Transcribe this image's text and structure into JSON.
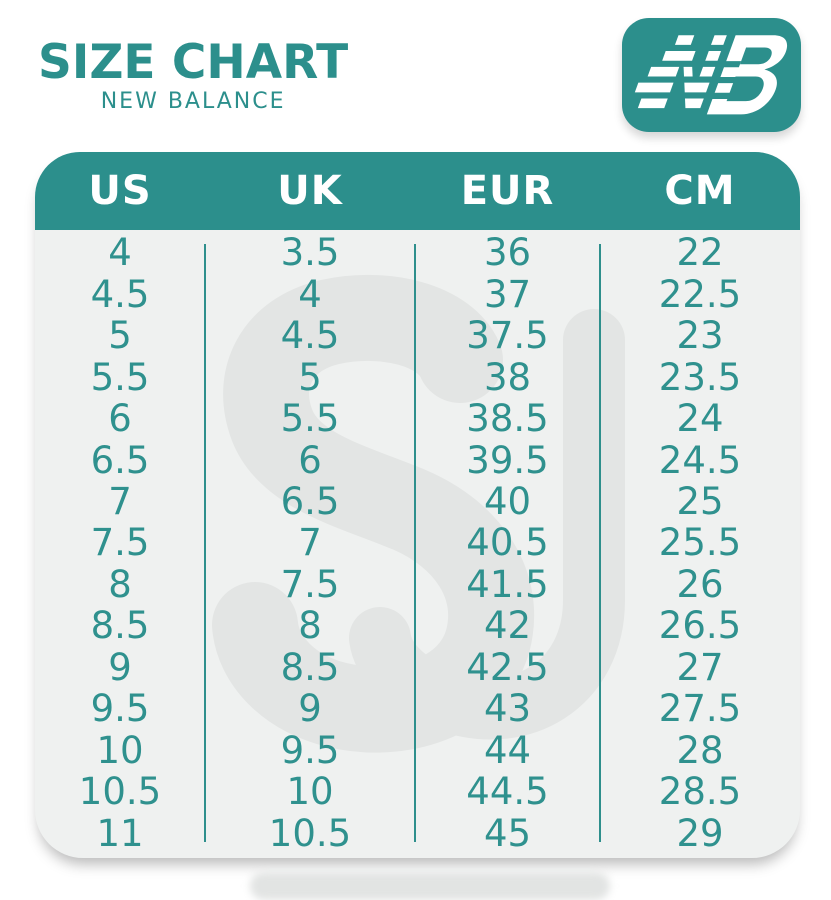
{
  "header": {
    "title": "SIZE CHART",
    "subtitle": "NEW BALANCE",
    "logo_brand": "New Balance"
  },
  "watermark": {
    "glyph": "SJ"
  },
  "colors": {
    "teal": "#2c8f8c",
    "table_body_bg": "#eff1f0",
    "cell_text": "#2f918e",
    "header_text": "#ffffff",
    "watermark_gray": "#e3e5e4",
    "page_bg": "#ffffff"
  },
  "chart_data": {
    "type": "table",
    "title": "SIZE CHART",
    "subtitle": "NEW BALANCE",
    "columns": [
      "US",
      "UK",
      "EUR",
      "CM"
    ],
    "rows": [
      [
        "4",
        "3.5",
        "36",
        "22"
      ],
      [
        "4.5",
        "4",
        "37",
        "22.5"
      ],
      [
        "5",
        "4.5",
        "37.5",
        "23"
      ],
      [
        "5.5",
        "5",
        "38",
        "23.5"
      ],
      [
        "6",
        "5.5",
        "38.5",
        "24"
      ],
      [
        "6.5",
        "6",
        "39.5",
        "24.5"
      ],
      [
        "7",
        "6.5",
        "40",
        "25"
      ],
      [
        "7.5",
        "7",
        "40.5",
        "25.5"
      ],
      [
        "8",
        "7.5",
        "41.5",
        "26"
      ],
      [
        "8.5",
        "8",
        "42",
        "26.5"
      ],
      [
        "9",
        "8.5",
        "42.5",
        "27"
      ],
      [
        "9.5",
        "9",
        "43",
        "27.5"
      ],
      [
        "10",
        "9.5",
        "44",
        "28"
      ],
      [
        "10.5",
        "10",
        "44.5",
        "28.5"
      ],
      [
        "11",
        "10.5",
        "45",
        "29"
      ]
    ],
    "layout": {
      "header_position": "top",
      "grid": false,
      "column_dividers": true
    }
  }
}
